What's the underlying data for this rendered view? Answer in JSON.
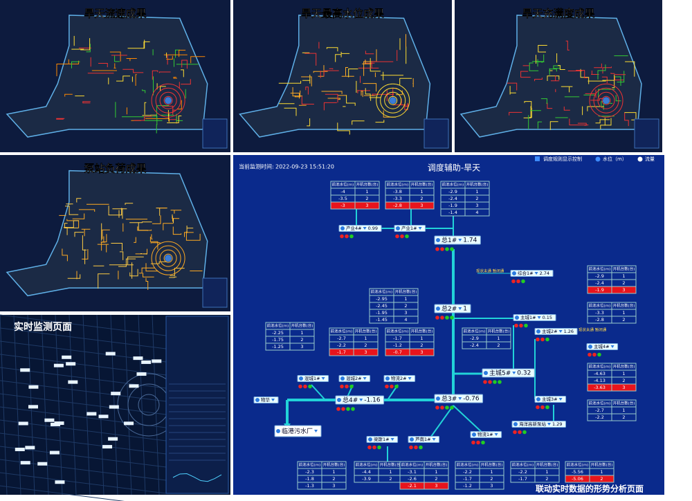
{
  "panels": [
    {
      "title": "旱天流速成果"
    },
    {
      "title": "旱天最高水位成果"
    },
    {
      "title": "旱天充满度成果"
    },
    {
      "title": "泵站负荷成果"
    },
    {
      "title": "实时监测页面"
    }
  ],
  "dispatch": {
    "monitor_label": "当前监测时间:",
    "monitor_time": "2022-09-23 15:51:20",
    "title": "调度辅助-旱天",
    "controls": {
      "rule_toggle": "调度规则显示控制",
      "level": "水位（m）",
      "flow": "流量"
    },
    "table_header": [
      "前池水位(m)",
      "开机台数(台)"
    ],
    "tables": [
      {
        "rows": [
          [
            -4,
            1
          ],
          [
            -3.5,
            2
          ],
          [
            -3,
            3
          ]
        ],
        "active_row": 2
      },
      {
        "rows": [
          [
            -3.8,
            1
          ],
          [
            -3.3,
            2
          ],
          [
            -2.8,
            3
          ]
        ],
        "active_row": 2
      },
      {
        "rows": [
          [
            -2.9,
            1
          ],
          [
            -2.4,
            2
          ],
          [
            -1.9,
            3
          ],
          [
            -1.4,
            4
          ]
        ]
      },
      {
        "rows": [
          [
            -2.95,
            1
          ],
          [
            -2.45,
            2
          ],
          [
            -1.95,
            3
          ],
          [
            -1.45,
            4
          ]
        ]
      },
      {
        "rows": [
          [
            -2.9,
            1
          ],
          [
            -2.4,
            2
          ],
          [
            -1.9,
            3
          ]
        ],
        "active_row": 2
      },
      {
        "rows": [
          [
            -3.3,
            1
          ],
          [
            -2.8,
            2
          ]
        ]
      },
      {
        "rows": [
          [
            -2.25,
            1
          ],
          [
            -1.75,
            2
          ],
          [
            -1.25,
            3
          ]
        ]
      },
      {
        "rows": [
          [
            -2.7,
            1
          ],
          [
            -2.2,
            2
          ],
          [
            -1.7,
            3
          ]
        ],
        "active_row": 2
      },
      {
        "rows": [
          [
            -1.7,
            1
          ],
          [
            -1.2,
            2
          ],
          [
            -0.7,
            3
          ]
        ],
        "active_row": 2
      },
      {
        "rows": [
          [
            -2.9,
            1
          ],
          [
            -2.4,
            2
          ]
        ]
      },
      {
        "rows": [
          [
            -4.63,
            1
          ],
          [
            -4.13,
            2
          ],
          [
            -3.63,
            3
          ]
        ],
        "active_row": 2
      },
      {
        "rows": [
          [
            -2.7,
            1
          ],
          [
            -2.2,
            2
          ]
        ]
      },
      {
        "rows": [
          [
            -2.3,
            1
          ],
          [
            -1.8,
            2
          ],
          [
            -1.3,
            3
          ]
        ]
      },
      {
        "rows": [
          [
            -4.4,
            1
          ],
          [
            -3.9,
            2
          ]
        ]
      },
      {
        "rows": [
          [
            -3.1,
            1
          ],
          [
            -2.6,
            2
          ],
          [
            -2.1,
            3
          ]
        ],
        "active_row": 2
      },
      {
        "rows": [
          [
            -2.2,
            1
          ],
          [
            -1.7,
            2
          ],
          [
            -1.2,
            3
          ]
        ]
      },
      {
        "rows": [
          [
            -2.2,
            1
          ],
          [
            -1.7,
            2
          ]
        ]
      },
      {
        "rows": [
          [
            -5.56,
            1
          ],
          [
            -5.06,
            2
          ]
        ],
        "active_row": 1
      }
    ],
    "nodes": [
      {
        "name": "产业4#",
        "value": 0.99
      },
      {
        "name": "产业1#"
      },
      {
        "name": "总1#",
        "value": 1.74
      },
      {
        "name": "综合1#",
        "value": 2.74
      },
      {
        "name": "总2#",
        "value": 1
      },
      {
        "name": "主城1#",
        "value": 0.15
      },
      {
        "name": "主城2#",
        "value": 1.26
      },
      {
        "name": "主城4#"
      },
      {
        "name": "混城1#"
      },
      {
        "name": "混城2#"
      },
      {
        "name": "物流2#"
      },
      {
        "name": "主城5#",
        "value": 0.32
      },
      {
        "name": "物华"
      },
      {
        "name": "总4#",
        "value": -1.16
      },
      {
        "name": "总3#",
        "value": -0.76
      },
      {
        "name": "主城3#"
      },
      {
        "name": "临港污水厂"
      },
      {
        "name": "海洋高新泵站",
        "value": 1.29
      },
      {
        "name": "梁斯1#"
      },
      {
        "name": "芦南1#"
      },
      {
        "name": "物流1#"
      }
    ],
    "notes": [
      "现状未通 暂闭通",
      "现状未通 暂闭通"
    ],
    "caption": "联动实时数据的形势分析页面"
  }
}
